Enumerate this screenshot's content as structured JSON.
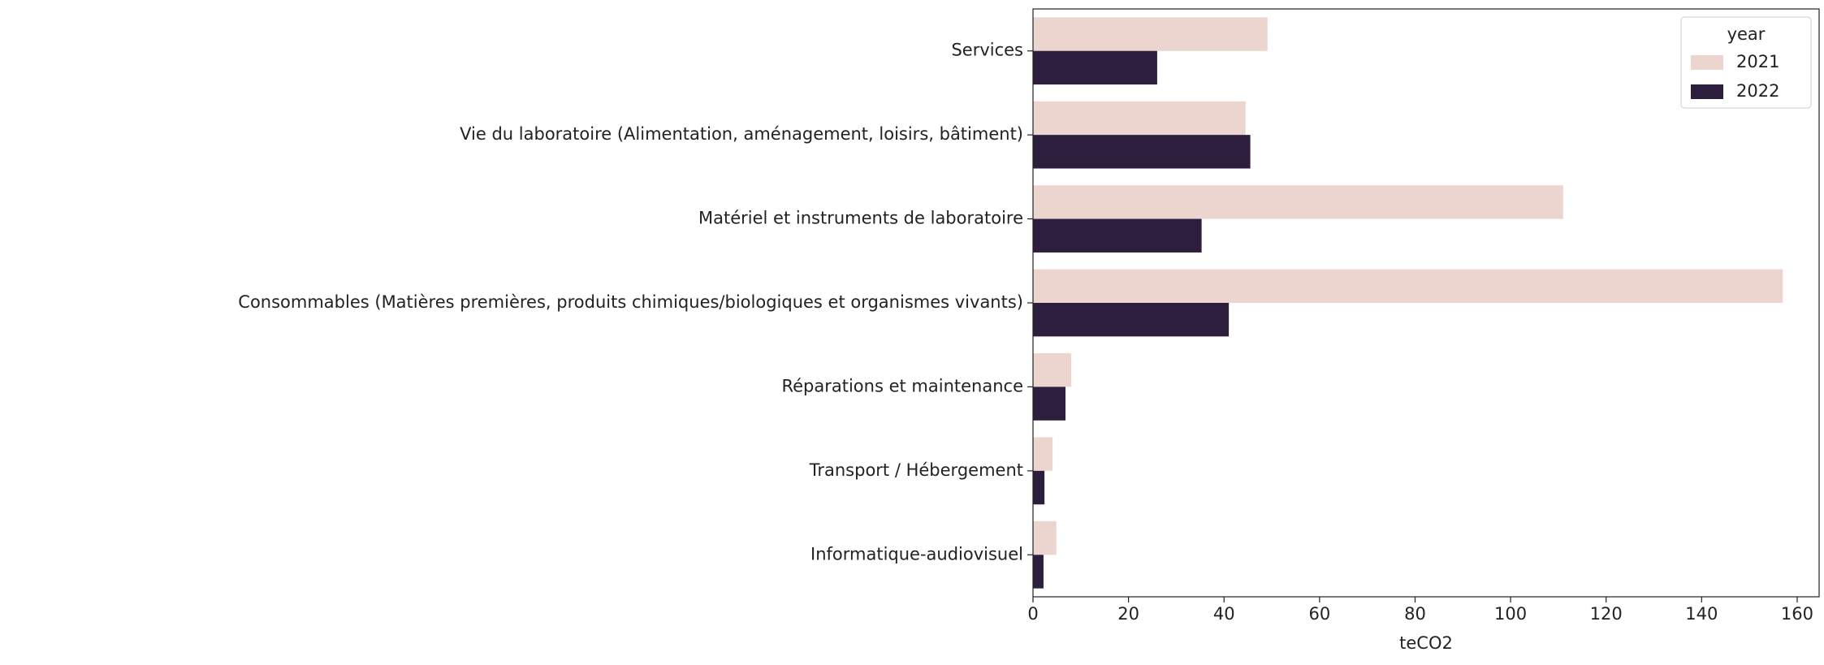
{
  "chart_data": {
    "type": "barh",
    "xlabel": "teCO2",
    "legend_title": "year",
    "legend_loc": "upper right",
    "categories": [
      "Services",
      "Vie du laboratoire (Alimentation, aménagement, loisirs, bâtiment)",
      "Matériel et instruments de laboratoire",
      "Consommables (Matières premières, produits chimiques/biologiques et organismes vivants)",
      "Réparations et maintenance",
      "Transport / Hébergement",
      "Informatique-audiovisuel"
    ],
    "series": [
      {
        "name": "2021",
        "color": "#ecd4cf",
        "values": [
          49.1,
          44.5,
          111,
          157,
          8,
          4.1,
          4.9
        ]
      },
      {
        "name": "2022",
        "color": "#2d1e3e",
        "values": [
          26,
          45.5,
          35.3,
          41,
          6.8,
          2.4,
          2.2
        ]
      }
    ],
    "xlim": [
      0,
      164.6
    ],
    "xticks": [
      0,
      20,
      40,
      60,
      80,
      100,
      120,
      140,
      160
    ]
  }
}
